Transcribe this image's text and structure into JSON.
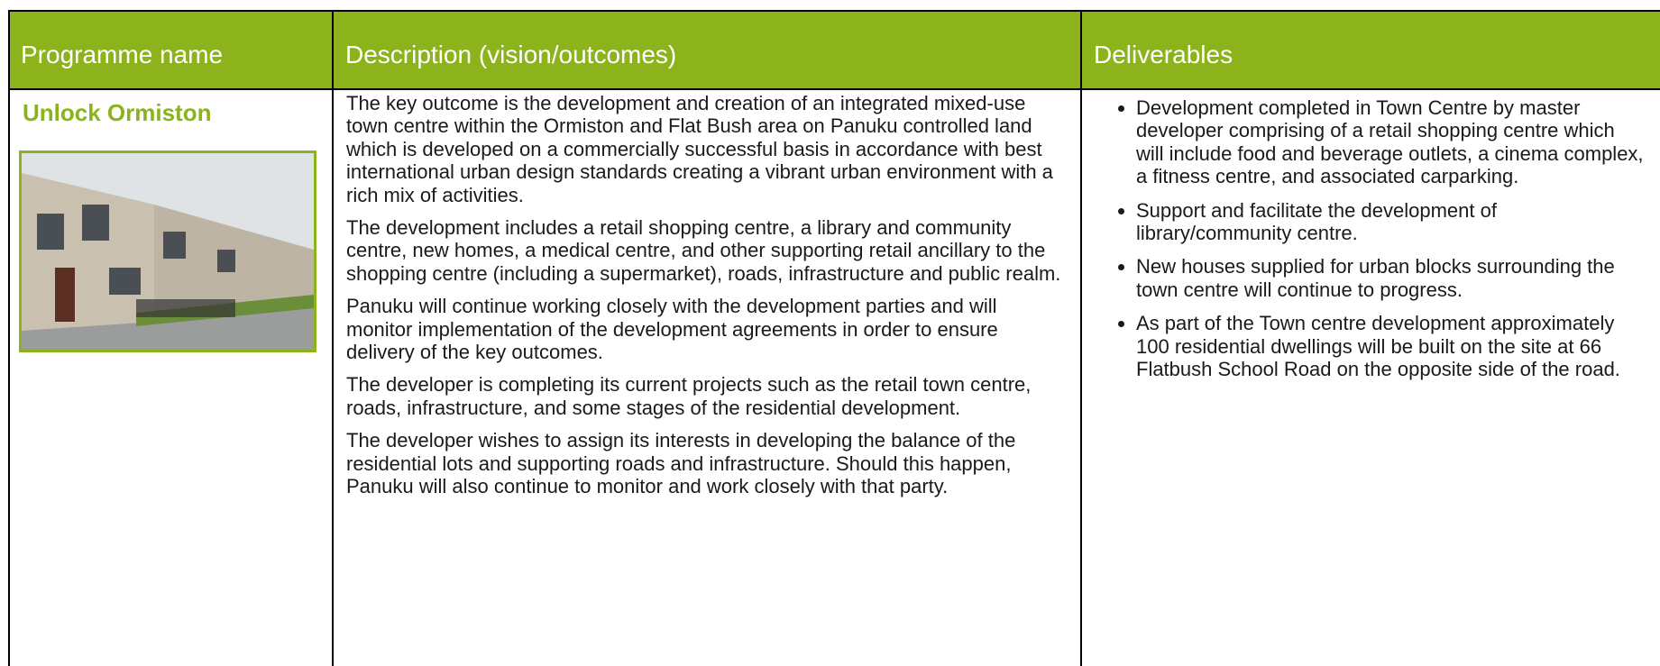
{
  "header": {
    "columns": [
      "Programme name",
      "Description (vision/outcomes)",
      "Deliverables"
    ]
  },
  "programme": {
    "name": "Unlock Ormiston"
  },
  "description": {
    "paragraphs": [
      "The key outcome is the development and creation of an integrated mixed-use town centre within the Ormiston and Flat Bush area on Panuku controlled land which is developed on a commercially successful basis in accordance with best international urban design standards creating a vibrant urban environment with a rich mix of activities.",
      "The development includes a retail shopping centre, a library and community centre, new homes, a medical centre, and other supporting retail ancillary to the shopping centre (including a supermarket), roads, infrastructure and public realm.",
      "Panuku will continue working closely with the development parties and will monitor implementation of the development agreements in order to ensure delivery of the key outcomes.",
      "The developer is completing its current projects such as the retail town centre, roads, infrastructure, and some stages of the residential development.",
      "The developer wishes to assign its interests in developing the balance of the residential lots and supporting roads and infrastructure. Should this happen, Panuku will also continue to monitor and work closely with that party."
    ]
  },
  "deliverables": {
    "items": [
      "Development completed in Town Centre by master developer comprising of a retail shopping centre which will include food and beverage outlets, a cinema complex, a fitness centre, and associated carparking.",
      "Support and facilitate the development of library/community centre.",
      "New houses supplied for urban blocks surrounding the town centre will continue to progress.",
      "As part of the Town centre development approximately 100 residential dwellings will be built on the site at 66 Flatbush School Road on the opposite side of the road."
    ]
  }
}
